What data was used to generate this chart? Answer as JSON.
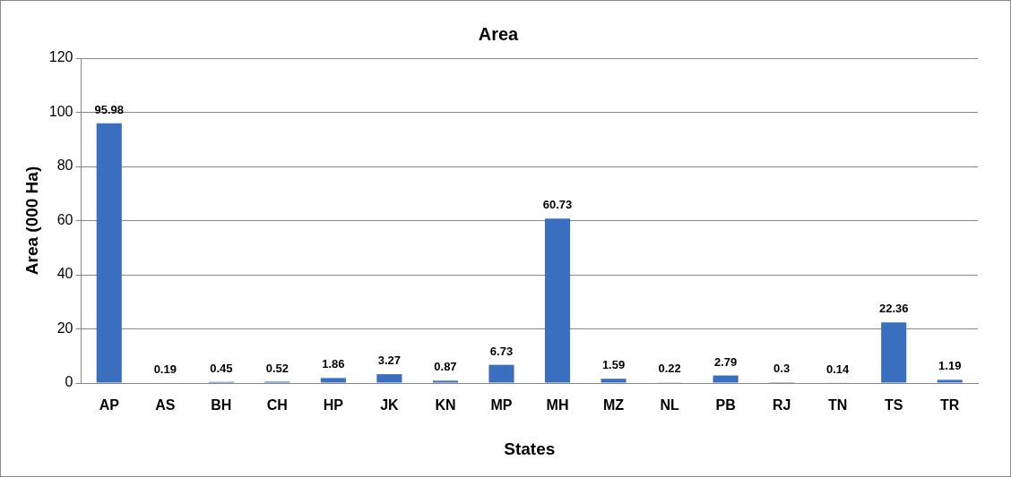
{
  "chart_data": {
    "type": "bar",
    "title": "Area",
    "xlabel": "States",
    "ylabel": "Area (000 Ha)",
    "categories": [
      "AP",
      "AS",
      "BH",
      "CH",
      "HP",
      "JK",
      "KN",
      "MP",
      "MH",
      "MZ",
      "NL",
      "PB",
      "RJ",
      "TN",
      "TS",
      "TR"
    ],
    "values": [
      95.98,
      0.19,
      0.45,
      0.52,
      1.86,
      3.27,
      0.87,
      6.73,
      60.73,
      1.59,
      0.22,
      2.79,
      0.3,
      0.14,
      22.36,
      1.19
    ],
    "color": "#3a6fbf",
    "ylim": [
      0,
      120
    ],
    "yticks": [
      0,
      20,
      40,
      60,
      80,
      100,
      120
    ],
    "grid": "y",
    "legend": false,
    "data_labels": true
  }
}
